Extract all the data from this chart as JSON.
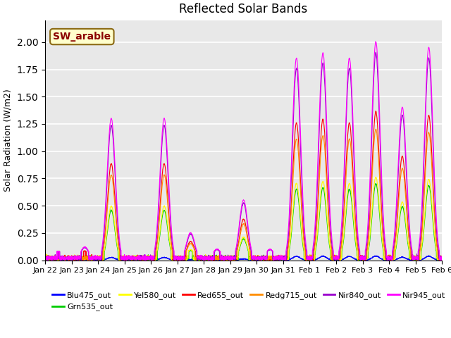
{
  "title": "Reflected Solar Bands",
  "ylabel": "Solar Radiation (W/m2)",
  "xlabel": "",
  "ylim": [
    0,
    2.2
  ],
  "annotation_text": "SW_arable",
  "annotation_color": "#8B0000",
  "annotation_bg": "#FFFFCC",
  "annotation_border": "#8B6914",
  "series": [
    {
      "label": "Blu475_out",
      "color": "#0000FF"
    },
    {
      "label": "Grn535_out",
      "color": "#00CC00"
    },
    {
      "label": "Yel580_out",
      "color": "#FFFF00"
    },
    {
      "label": "Red655_out",
      "color": "#FF0000"
    },
    {
      "label": "Redg715_out",
      "color": "#FF8C00"
    },
    {
      "label": "Nir840_out",
      "color": "#9900CC"
    },
    {
      "label": "Nir945_out",
      "color": "#FF00FF"
    }
  ],
  "xtick_labels": [
    "Jan 22",
    "Jan 23",
    "Jan 24",
    "Jan 25",
    "Jan 26",
    "Jan 27",
    "Jan 28",
    "Jan 29",
    "Jan 30",
    "Jan 31",
    "Feb 1",
    "Feb 2",
    "Feb 3",
    "Feb 4",
    "Feb 5",
    "Feb 6"
  ],
  "bg_color": "#E8E8E8",
  "grid_color": "#FFFFFF",
  "n_points": 3600,
  "n_days": 15,
  "day_amps": [
    0.08,
    0.12,
    1.3,
    0.07,
    1.3,
    0.25,
    0.1,
    0.55,
    0.1,
    1.85,
    1.9,
    1.85,
    2.0,
    1.4,
    1.95
  ],
  "scales": {
    "Nir945_out": 1.0,
    "Nir840_out": 0.95,
    "Red655_out": 0.68,
    "Redg715_out": 0.6,
    "Yel580_out": 0.38,
    "Grn535_out": 0.35,
    "Blu475_out": 0.018
  },
  "widths": {
    "Nir945_out": 3.8,
    "Nir840_out": 3.6,
    "Red655_out": 3.5,
    "Redg715_out": 3.5,
    "Yel580_out": 3.4,
    "Grn535_out": 3.3,
    "Blu475_out": 3.2
  }
}
